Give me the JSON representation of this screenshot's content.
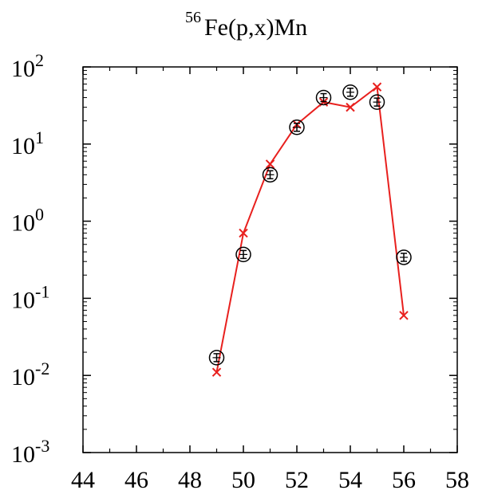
{
  "chart_data": {
    "type": "scatter",
    "title": "Fe(p,x)Mn",
    "title_superscript": "56",
    "xlabel": "",
    "ylabel": "",
    "xlim": [
      44,
      58
    ],
    "ylim": [
      0.001,
      100
    ],
    "y_scale": "log",
    "grid": false,
    "legend": "none",
    "x_ticks": [
      "44",
      "46",
      "48",
      "50",
      "52",
      "54",
      "56",
      "58"
    ],
    "y_ticks": [
      {
        "base": "10",
        "exp": "-3"
      },
      {
        "base": "10",
        "exp": "-2"
      },
      {
        "base": "10",
        "exp": "-1"
      },
      {
        "base": "10",
        "exp": "0"
      },
      {
        "base": "10",
        "exp": "1"
      },
      {
        "base": "10",
        "exp": "2"
      }
    ],
    "series": [
      {
        "kind": "line-cross",
        "color": "#e8201e",
        "x": [
          49,
          50,
          51,
          52,
          53,
          54,
          55,
          56
        ],
        "y": [
          0.011,
          0.7,
          5.5,
          18,
          35,
          30,
          55,
          0.06
        ]
      },
      {
        "kind": "circle-errorbar",
        "color": "#000000",
        "x": [
          49,
          50,
          51,
          52,
          53,
          54,
          55,
          56
        ],
        "y": [
          0.017,
          0.37,
          4.0,
          16.5,
          40,
          47,
          35,
          0.34
        ]
      }
    ]
  }
}
